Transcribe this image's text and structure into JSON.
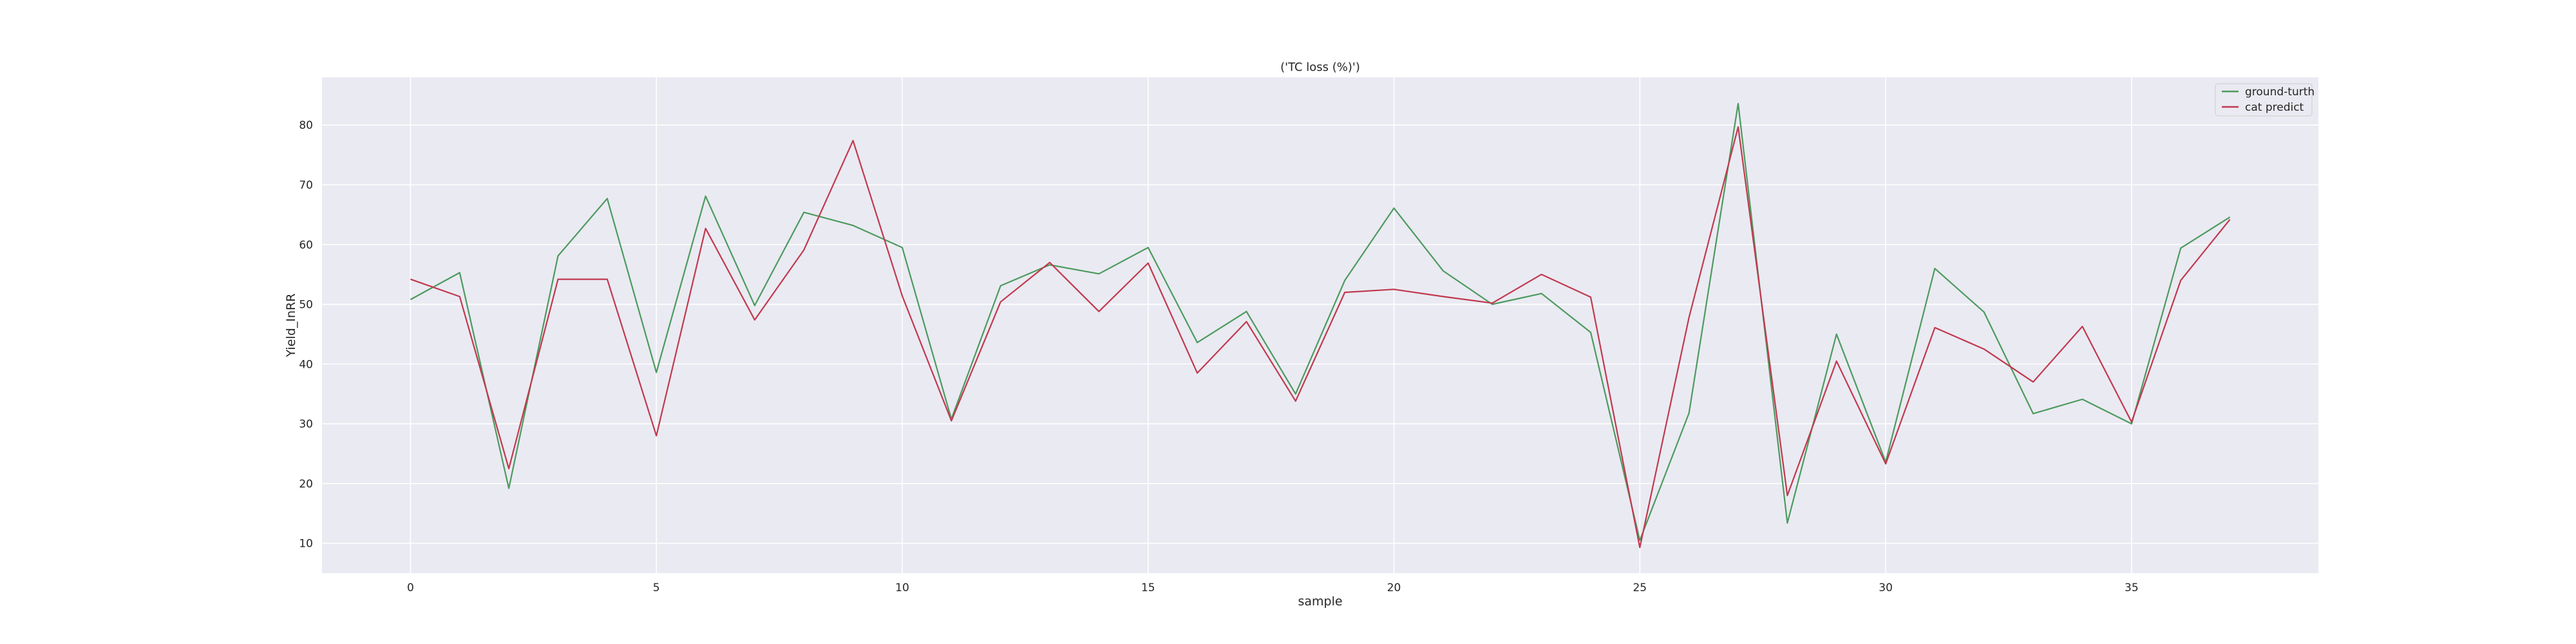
{
  "chart_data": {
    "type": "line",
    "title": "('TC loss (%)')",
    "xlabel": "sample",
    "ylabel": "Yield_InRR",
    "xlim": [
      -1.8,
      38.8
    ],
    "ylim": [
      5,
      88
    ],
    "x_ticks": [
      0,
      5,
      10,
      15,
      20,
      25,
      30,
      35
    ],
    "y_ticks": [
      10,
      20,
      30,
      40,
      50,
      60,
      70,
      80
    ],
    "x_tick_labels": [
      "0",
      "5",
      "10",
      "15",
      "20",
      "25",
      "30",
      "35"
    ],
    "y_tick_labels": [
      "10",
      "20",
      "30",
      "40",
      "50",
      "60",
      "70",
      "80"
    ],
    "grid": true,
    "legend_position": "top-right",
    "x": [
      0,
      1,
      2,
      3,
      4,
      5,
      6,
      7,
      8,
      9,
      10,
      11,
      12,
      13,
      14,
      15,
      16,
      17,
      18,
      19,
      20,
      21,
      22,
      23,
      24,
      25,
      26,
      27,
      28,
      29,
      30,
      31,
      32,
      33,
      34,
      35,
      36,
      37
    ],
    "series": [
      {
        "name": "ground-turth",
        "color": "#4c9a5e",
        "values": [
          50.8,
          55.3,
          19.2,
          58.1,
          67.7,
          38.6,
          68.1,
          49.8,
          65.4,
          63.2,
          59.5,
          30.8,
          53.1,
          56.6,
          55.1,
          59.5,
          43.6,
          48.8,
          35.0,
          54.0,
          66.1,
          55.6,
          50.0,
          51.8,
          45.3,
          10.5,
          31.8,
          83.6,
          13.4,
          45.0,
          23.6,
          56.0,
          48.7,
          31.7,
          34.1,
          30.0,
          59.4,
          64.6
        ]
      },
      {
        "name": "cat predict",
        "color": "#c0394e",
        "values": [
          54.2,
          51.3,
          22.5,
          54.2,
          54.2,
          28.0,
          62.7,
          47.4,
          59.1,
          77.4,
          51.4,
          30.5,
          50.4,
          57.0,
          48.8,
          56.9,
          38.5,
          47.1,
          33.8,
          52.0,
          52.5,
          51.3,
          50.2,
          55.0,
          51.2,
          9.3,
          47.8,
          79.7,
          18.0,
          40.5,
          23.3,
          46.1,
          42.5,
          37.0,
          46.3,
          30.3,
          54.0,
          64.2
        ]
      }
    ]
  }
}
